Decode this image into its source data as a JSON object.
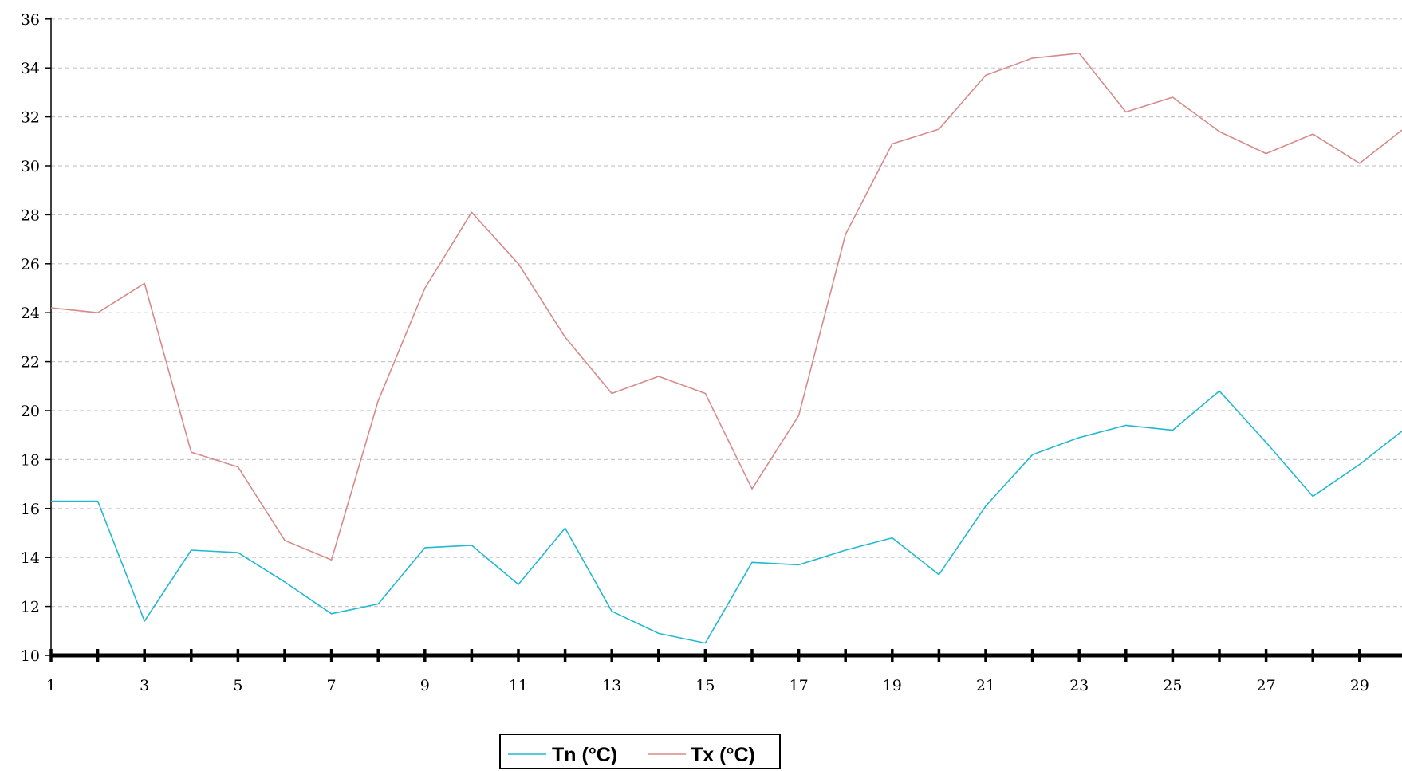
{
  "chart_data": {
    "type": "line",
    "x": [
      1,
      2,
      3,
      4,
      5,
      6,
      7,
      8,
      9,
      10,
      11,
      12,
      13,
      14,
      15,
      16,
      17,
      18,
      19,
      20,
      21,
      22,
      23,
      24,
      25,
      26,
      27,
      28,
      29,
      30
    ],
    "x_tick_labels": [
      "1",
      "3",
      "5",
      "7",
      "9",
      "11",
      "13",
      "15",
      "17",
      "19",
      "21",
      "23",
      "25",
      "27",
      "29"
    ],
    "y_tick_labels": [
      "10",
      "12",
      "14",
      "16",
      "18",
      "20",
      "22",
      "24",
      "26",
      "28",
      "30",
      "32",
      "34",
      "36"
    ],
    "ylim": [
      10,
      36
    ],
    "xlim": [
      1,
      30
    ],
    "grid": "horizontal dashed",
    "legend_position": "bottom-center",
    "series": [
      {
        "name": "Tn (°C)",
        "color": "#22b8d0",
        "values": [
          16.3,
          16.3,
          11.4,
          14.3,
          14.2,
          13.0,
          11.7,
          12.1,
          14.4,
          14.5,
          12.9,
          15.2,
          11.8,
          10.9,
          10.5,
          13.8,
          13.7,
          14.3,
          14.8,
          13.3,
          16.1,
          18.2,
          18.9,
          19.4,
          19.2,
          20.8,
          18.7,
          16.5,
          17.8,
          19.3
        ]
      },
      {
        "name": "Tx (°C)",
        "color": "#d88a8a",
        "values": [
          24.2,
          24.0,
          25.2,
          18.3,
          17.7,
          14.7,
          13.9,
          20.4,
          25.0,
          28.1,
          26.0,
          23.0,
          20.7,
          21.4,
          20.7,
          16.8,
          19.8,
          27.2,
          30.9,
          31.5,
          33.7,
          34.4,
          34.6,
          32.2,
          32.8,
          31.4,
          30.5,
          31.3,
          30.1,
          31.6
        ]
      }
    ]
  }
}
